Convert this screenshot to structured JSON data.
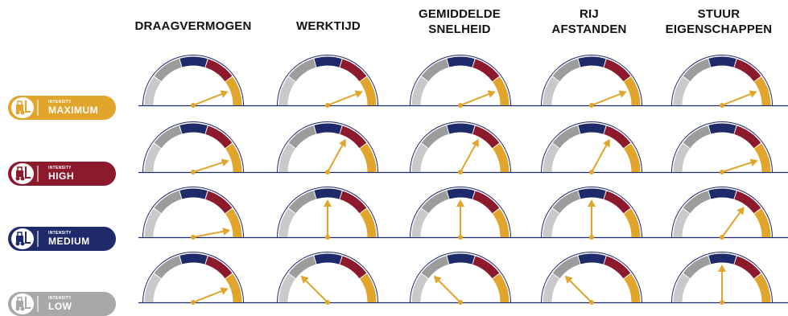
{
  "columns": [
    {
      "label": "DRAAGVERMOGEN"
    },
    {
      "label": "WERKTIJD"
    },
    {
      "label": "GEMIDDELDE\nSNELHEID"
    },
    {
      "label": "RIJ\nAFSTANDEN"
    },
    {
      "label": "STUUR\nEIGENSCHAPPEN"
    }
  ],
  "rows": [
    {
      "intensity_label": "INTENSITY",
      "level": "MAXIMUM",
      "color": "#e0a52a",
      "levels": [
        0.88,
        0.88,
        0.88,
        0.88,
        0.88
      ]
    },
    {
      "intensity_label": "INTENSITY",
      "level": "HIGH",
      "color": "#8c1a2c",
      "levels": [
        0.9,
        0.66,
        0.66,
        0.66,
        0.9
      ]
    },
    {
      "intensity_label": "INTENSITY",
      "level": "MEDIUM",
      "color": "#1f2a6b",
      "levels": [
        0.94,
        0.5,
        0.5,
        0.5,
        0.7
      ]
    },
    {
      "intensity_label": "INTENSITY",
      "level": "LOW",
      "color": "#a8a8a8",
      "levels": [
        0.88,
        0.25,
        0.25,
        0.25,
        0.5
      ]
    }
  ],
  "gauge_colors": {
    "light_gray": "#c9c9c9",
    "gray": "#9c9c9c",
    "navy": "#1f2a6b",
    "red": "#8c1a2c",
    "gold": "#e0a52a",
    "rule": "#1f2a6b"
  },
  "icon": "forklift-icon"
}
